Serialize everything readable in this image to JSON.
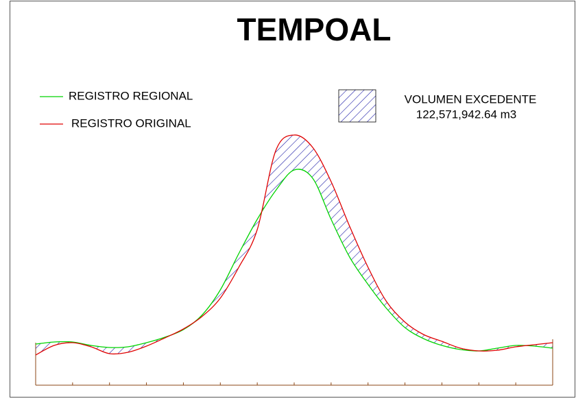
{
  "chart_data": {
    "type": "line",
    "title": "TEMPOAL",
    "x": [
      0,
      1,
      2,
      3,
      4,
      5,
      6,
      7,
      8,
      9,
      10,
      11,
      12,
      13,
      14,
      15,
      16,
      17,
      18,
      19,
      20,
      21,
      22,
      23,
      24,
      25,
      26,
      27,
      28
    ],
    "xlim": [
      0,
      28
    ],
    "ylim": [
      0,
      400
    ],
    "series": [
      {
        "name": "REGISTRO REGIONAL",
        "color": "#00d400",
        "values": [
          60,
          63,
          63,
          58,
          55,
          56,
          62,
          70,
          81,
          102,
          139,
          192,
          242,
          284,
          314,
          302,
          242,
          187,
          147,
          112,
          84,
          68,
          58,
          52,
          50,
          54,
          58,
          57,
          54
        ]
      },
      {
        "name": "REGISTRO ORIGINAL",
        "color": "#e00000",
        "values": [
          44,
          58,
          62,
          56,
          46,
          48,
          57,
          69,
          82,
          100,
          127,
          172,
          227,
          342,
          365,
          347,
          297,
          232,
          172,
          122,
          92,
          74,
          64,
          54,
          50,
          51,
          56,
          59,
          62
        ]
      }
    ],
    "annotation": {
      "label": "VOLUMEN EXCEDENTE",
      "value": "122,571,942.64 m3"
    },
    "hatch_color": "#1a1aa6"
  }
}
